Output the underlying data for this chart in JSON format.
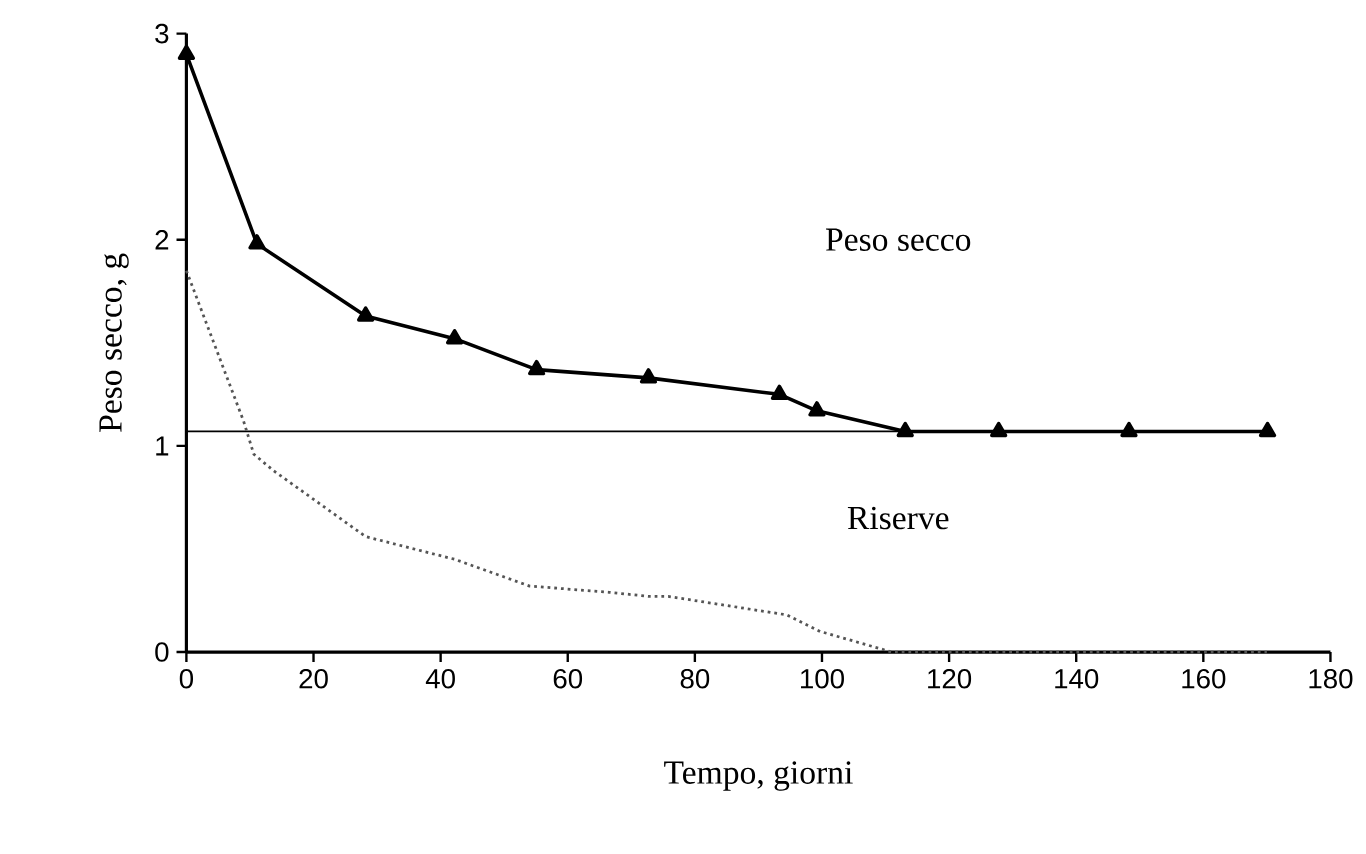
{
  "chart_data": {
    "type": "line",
    "xlabel": "Tempo, giorni",
    "ylabel": "Peso secco, g",
    "xlim": [
      0,
      180
    ],
    "ylim": [
      0,
      3
    ],
    "xticks": [
      0,
      20,
      40,
      60,
      80,
      100,
      120,
      140,
      160,
      180
    ],
    "yticks": [
      0,
      1,
      2,
      3
    ],
    "grid": false,
    "annotations": [
      "Peso secco",
      "Riserve"
    ],
    "series": [
      {
        "color": "#000000",
        "marker": "triangle",
        "line_style": "solid",
        "x": [
          0,
          11.1,
          28.2,
          42.2,
          55.1,
          72.7,
          93.3,
          99.2,
          113.1,
          127.8,
          148.3,
          170.1
        ],
        "values": [
          2.9,
          1.98,
          1.63,
          1.52,
          1.37,
          1.33,
          1.25,
          1.17,
          1.07,
          1.07,
          1.07,
          1.07
        ]
      },
      {
        "color": "#555555",
        "marker": "none",
        "line_style": "dotted",
        "x": [
          0,
          9,
          10.6,
          13.7,
          28.2,
          42.2,
          54,
          66.5,
          72.7,
          75.8,
          94.5,
          99.7,
          111,
          170
        ],
        "values": [
          1.85,
          1.12,
          0.96,
          0.88,
          0.56,
          0.45,
          0.32,
          0.29,
          0.27,
          0.27,
          0.18,
          0.1,
          0,
          0
        ]
      }
    ],
    "ref_lines": [
      {
        "axis": "y",
        "value": 1.07,
        "color": "#000000",
        "line_style": "solid"
      }
    ]
  }
}
